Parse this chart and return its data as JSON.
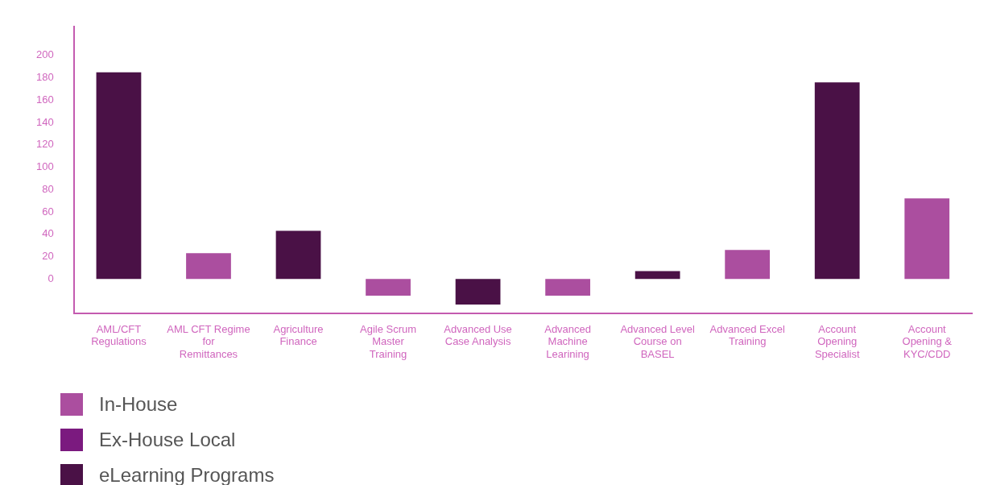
{
  "chart_data": {
    "type": "bar",
    "categories": [
      "AML/CFT Regulations",
      "AML CFT Regime for Remittances",
      "Agriculture Finance",
      "Agile Scrum Master Training",
      "Advanced Use Case Analysis",
      "Advanced Machine Learining",
      "Advanced Level Course on BASEL",
      "Advanced Excel Training",
      "Account Opening Specialist",
      "Account Opening & KYC/CDD"
    ],
    "series": [
      {
        "name": "In-House",
        "color": "#ab4e9f",
        "values": [
          null,
          23,
          null,
          -15,
          null,
          -15,
          null,
          26,
          null,
          72
        ]
      },
      {
        "name": "Ex-House Local",
        "color": "#7b1a7f",
        "values": [
          null,
          null,
          null,
          null,
          null,
          null,
          null,
          null,
          null,
          null
        ]
      },
      {
        "name": "eLearning Programs",
        "color": "#4a1146",
        "values": [
          185,
          null,
          43,
          null,
          -23,
          null,
          7,
          null,
          176,
          null
        ]
      }
    ],
    "ylim": [
      -31,
      226
    ],
    "yticks": [
      0,
      20,
      40,
      60,
      80,
      100,
      120,
      140,
      160,
      180,
      200
    ],
    "grid": false,
    "legend": "bottom left"
  }
}
